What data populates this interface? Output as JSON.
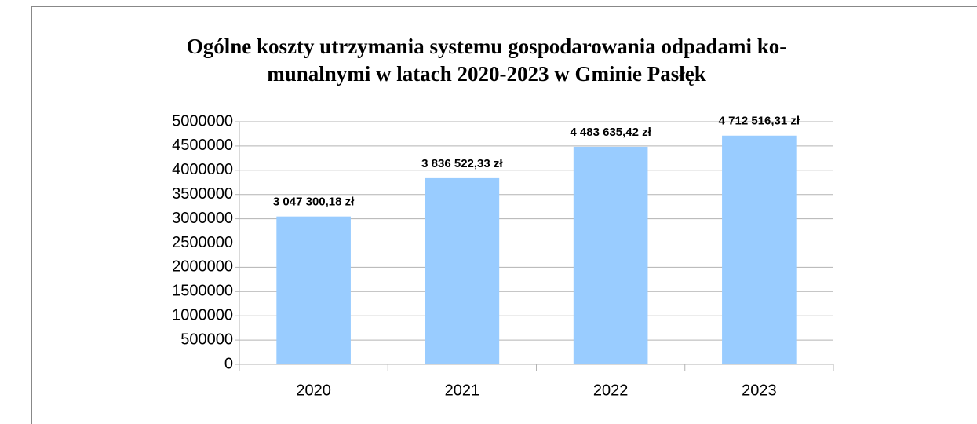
{
  "chart_data": {
    "type": "bar",
    "title": [
      "Ogólne koszty utrzymania systemu gospodarowania odpadami ko-",
      "munalnymi w latach 2020-2023 w Gminie Pasłęk"
    ],
    "categories": [
      "2020",
      "2021",
      "2022",
      "2023"
    ],
    "values": [
      3047300.18,
      3836522.33,
      4483635.42,
      4712516.31
    ],
    "value_labels": [
      "3 047 300,18 zł",
      "3 836 522,33 zł",
      "4 483 635,42 zł",
      "4 712 516,31 zł"
    ],
    "color": "#99ccff",
    "ylim": [
      0,
      5000000
    ],
    "yticks": [
      0,
      500000,
      1000000,
      1500000,
      2000000,
      2500000,
      3000000,
      3500000,
      4000000,
      4500000,
      5000000
    ],
    "grid": true
  }
}
